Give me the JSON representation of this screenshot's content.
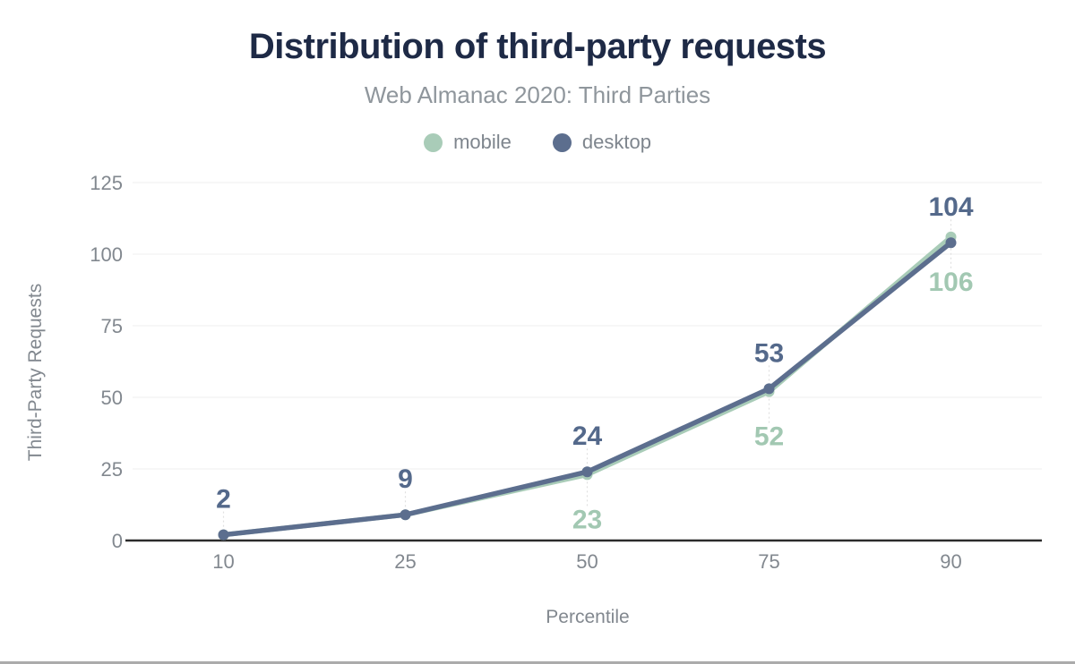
{
  "header": {
    "title": "Distribution of third-party requests",
    "subtitle": "Web Almanac 2020: Third Parties"
  },
  "legend": [
    {
      "label": "mobile",
      "color": "#a9ccb8"
    },
    {
      "label": "desktop",
      "color": "#5c6e8e"
    }
  ],
  "axes": {
    "xlabel": "Percentile",
    "ylabel": "Third-Party Requests"
  },
  "colors": {
    "title": "#1e2a46",
    "subtitle": "#8f969c",
    "tick_label": "#82888f",
    "axis_title": "#82888f",
    "gridline": "#efefef",
    "baseline": "#2b2b2b",
    "leader": "#e0e0e0",
    "background": "#ffffff"
  },
  "chart_data": {
    "type": "line",
    "title": "Distribution of third-party requests",
    "subtitle": "Web Almanac 2020: Third Parties",
    "xlabel": "Percentile",
    "ylabel": "Third-Party Requests",
    "categories": [
      "10",
      "25",
      "50",
      "75",
      "90"
    ],
    "yticks": [
      0,
      25,
      50,
      75,
      100,
      125
    ],
    "ylim": [
      0,
      125
    ],
    "grid": "horizontal",
    "legend_position": "top",
    "series": [
      {
        "name": "mobile",
        "color": "#a9ccb8",
        "label_color": "#a2c8b2",
        "values": [
          2,
          9,
          23,
          52,
          106
        ],
        "label_visible": [
          false,
          false,
          true,
          true,
          true
        ],
        "label_placement": "below"
      },
      {
        "name": "desktop",
        "color": "#5c6e8e",
        "label_color": "#54698b",
        "values": [
          2,
          9,
          24,
          53,
          104
        ],
        "label_visible": [
          true,
          true,
          true,
          true,
          true
        ],
        "label_placement": "above"
      }
    ]
  }
}
